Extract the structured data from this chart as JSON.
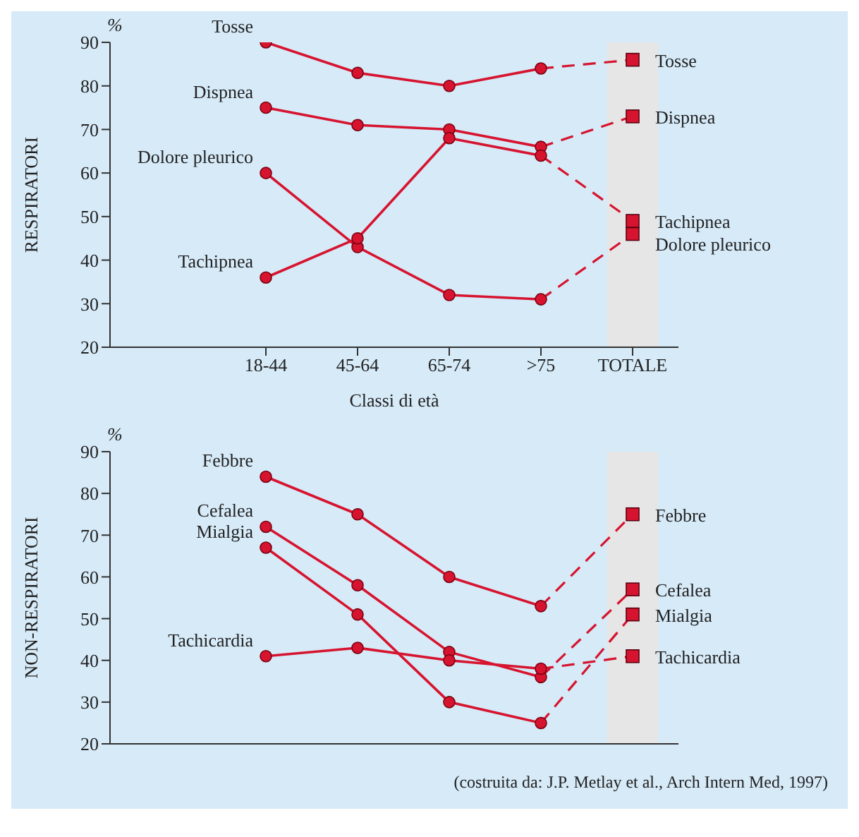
{
  "chart_data": [
    {
      "type": "line",
      "ylabel": "RESPIRATORI",
      "xlabel": "Classi di età",
      "categories": [
        "18-44",
        "45-64",
        "65-74",
        ">75",
        "TOTALE"
      ],
      "ylim": [
        20,
        90
      ],
      "yticks": [
        20,
        30,
        40,
        50,
        60,
        70,
        80,
        90
      ],
      "marker": "circle",
      "annotations": [
        "%"
      ],
      "bands": [
        {
          "axis": "x",
          "from": "TOTALE",
          "to": "TOTALE",
          "color": "#e6e6e6"
        }
      ],
      "series": [
        {
          "name": "Tosse",
          "color": "#d7142f",
          "values": [
            90,
            83,
            80,
            84,
            86
          ]
        },
        {
          "name": "Dispnea",
          "color": "#d7142f",
          "values": [
            75,
            71,
            70,
            66,
            73
          ]
        },
        {
          "name": "Dolore pleurico",
          "color": "#d7142f",
          "values": [
            60,
            43,
            32,
            31,
            46
          ]
        },
        {
          "name": "Tachipnea",
          "color": "#d7142f",
          "values": [
            36,
            45,
            68,
            64,
            49
          ]
        }
      ]
    },
    {
      "type": "line",
      "ylabel": "NON-RESPIRATORI",
      "categories": [
        "18-44",
        "45-64",
        "65-74",
        ">75",
        "TOTALE"
      ],
      "tick_labels": "y",
      "ylim": [
        20,
        90
      ],
      "yticks": [
        20,
        30,
        40,
        50,
        60,
        70,
        80,
        90
      ],
      "marker": "circle",
      "annotations": [
        "%",
        "(costruita da: J.P. Metlay et al., Arch Intern Med, 1997)"
      ],
      "bands": [
        {
          "axis": "x",
          "from": "TOTALE",
          "to": "TOTALE",
          "color": "#e6e6e6"
        }
      ],
      "series": [
        {
          "name": "Febbre",
          "color": "#d7142f",
          "values": [
            84,
            75,
            60,
            53,
            75
          ]
        },
        {
          "name": "Cefalea",
          "color": "#d7142f",
          "values": [
            72,
            58,
            42,
            36,
            57
          ]
        },
        {
          "name": "Mialgia",
          "color": "#d7142f",
          "values": [
            67,
            51,
            30,
            25,
            51
          ]
        },
        {
          "name": "Tachicardia",
          "color": "#d7142f",
          "values": [
            41,
            43,
            40,
            38,
            41
          ]
        }
      ]
    }
  ]
}
